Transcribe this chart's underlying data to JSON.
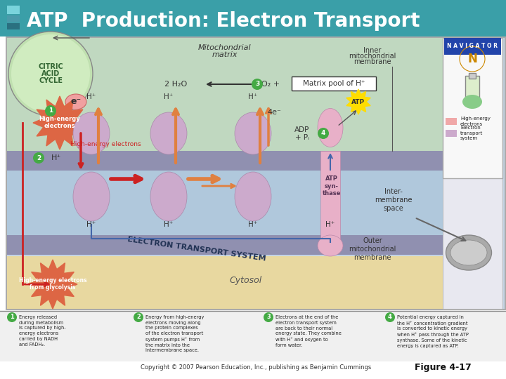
{
  "title": "ATP  Production: Electron Transport",
  "title_color": "#ffffff",
  "title_bg": "#3a9fa8",
  "title_fontsize": 20,
  "bg_color": "#ffffff",
  "diagram_bg": "#c4d4e4",
  "matrix_color": "#c0d8c0",
  "cytosol_color": "#e8d8a0",
  "outer_mem_color": "#9090b8",
  "inner_mem_color": "#9090b8",
  "protein_color": "#ccaacc",
  "arrow_red": "#cc2222",
  "arrow_orange": "#e08040",
  "arrow_blue": "#4466aa",
  "green_circle": "#44aa44",
  "yellow_burst": "#ffdd00",
  "starburst_color": "#dd6644",
  "copyright": "Copyright © 2007 Pearson Education, Inc., publishing as Benjamin Cummings",
  "figure_label": "Figure 4-17",
  "footnote1": "Energy released\nduring metabolism\nis captured by high-\nenergy electrons\ncarried by NADH\nand FADH₂.",
  "footnote2": "Energy from high-energy\nelectrons moving along\nthe protein complexes\nof the electron transport\nsystem pumps H⁺ from\nthe matrix into the\nintermembrane space.",
  "footnote3": "Electrons at the end of the\nelectron transport system\nare back to their normal\nenergy state. They combine\nwith H⁺ and oxygen to\nform water.",
  "footnote4": "Potential energy captured in\nthe H⁺ concentration gradient\nis converted to kinetic energy\nwhen H⁺ pass through the ATP\nsynthase. Some of the kinetic\nenergy is captured as ATP."
}
